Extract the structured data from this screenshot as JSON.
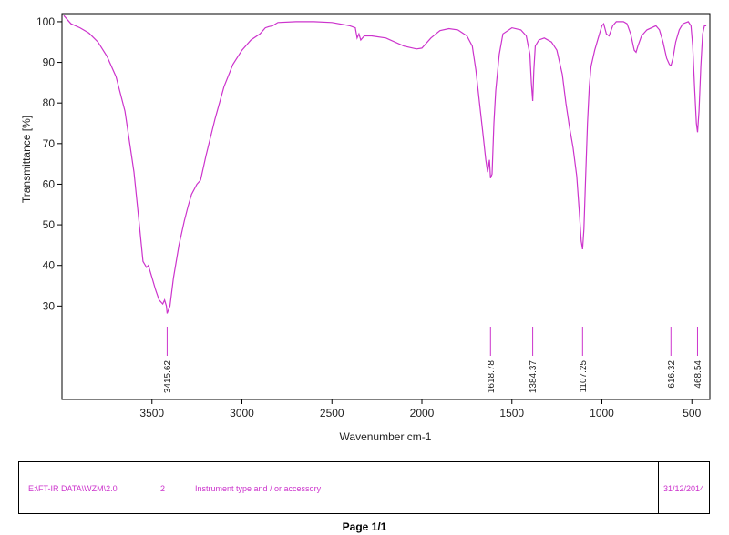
{
  "chart_data": {
    "type": "line",
    "title": "",
    "xlabel": "Wavenumber cm-1",
    "ylabel": "Transmittance [%]",
    "xlim": [
      4000,
      400
    ],
    "ylim": [
      7,
      102
    ],
    "x_ticks": [
      3500,
      3000,
      2500,
      2000,
      1500,
      1000,
      500
    ],
    "y_ticks": [
      30,
      40,
      50,
      60,
      70,
      80,
      90,
      100
    ],
    "color": "#cc33cc",
    "series": [
      {
        "points": [
          [
            3990,
            101.5
          ],
          [
            3950,
            99.5
          ],
          [
            3900,
            98.5
          ],
          [
            3850,
            97.2
          ],
          [
            3800,
            95.0
          ],
          [
            3750,
            91.5
          ],
          [
            3700,
            86.5
          ],
          [
            3650,
            78.0
          ],
          [
            3600,
            63.0
          ],
          [
            3570,
            50.0
          ],
          [
            3550,
            41.0
          ],
          [
            3530,
            39.5
          ],
          [
            3520,
            40.0
          ],
          [
            3500,
            37.0
          ],
          [
            3480,
            34.0
          ],
          [
            3460,
            31.5
          ],
          [
            3440,
            30.5
          ],
          [
            3430,
            31.5
          ],
          [
            3420,
            30.0
          ],
          [
            3415.62,
            28.2
          ],
          [
            3400,
            30.0
          ],
          [
            3380,
            37.0
          ],
          [
            3350,
            45.0
          ],
          [
            3320,
            51.0
          ],
          [
            3300,
            54.5
          ],
          [
            3280,
            57.5
          ],
          [
            3250,
            60.0
          ],
          [
            3230,
            61.0
          ],
          [
            3200,
            67.0
          ],
          [
            3150,
            76.0
          ],
          [
            3100,
            84.0
          ],
          [
            3050,
            89.5
          ],
          [
            3000,
            93.0
          ],
          [
            2950,
            95.5
          ],
          [
            2900,
            97.0
          ],
          [
            2870,
            98.5
          ],
          [
            2850,
            98.8
          ],
          [
            2830,
            99.0
          ],
          [
            2800,
            99.8
          ],
          [
            2700,
            100.0
          ],
          [
            2600,
            100.0
          ],
          [
            2500,
            99.8
          ],
          [
            2400,
            99.0
          ],
          [
            2370,
            98.5
          ],
          [
            2360,
            96.0
          ],
          [
            2350,
            97.0
          ],
          [
            2340,
            95.5
          ],
          [
            2320,
            96.5
          ],
          [
            2280,
            96.5
          ],
          [
            2200,
            96.0
          ],
          [
            2100,
            94.0
          ],
          [
            2030,
            93.3
          ],
          [
            2000,
            93.5
          ],
          [
            1950,
            96.0
          ],
          [
            1900,
            97.8
          ],
          [
            1850,
            98.3
          ],
          [
            1800,
            98.0
          ],
          [
            1750,
            96.5
          ],
          [
            1720,
            94.0
          ],
          [
            1700,
            88.0
          ],
          [
            1680,
            80.0
          ],
          [
            1660,
            72.0
          ],
          [
            1645,
            66.0
          ],
          [
            1635,
            63.0
          ],
          [
            1625,
            66.0
          ],
          [
            1618.78,
            61.5
          ],
          [
            1610,
            62.5
          ],
          [
            1600,
            75.0
          ],
          [
            1590,
            83.0
          ],
          [
            1570,
            92.0
          ],
          [
            1550,
            97.0
          ],
          [
            1500,
            98.5
          ],
          [
            1450,
            98.0
          ],
          [
            1420,
            96.5
          ],
          [
            1400,
            92.0
          ],
          [
            1392,
            85.0
          ],
          [
            1384.37,
            80.5
          ],
          [
            1378,
            88.0
          ],
          [
            1370,
            94.0
          ],
          [
            1350,
            95.5
          ],
          [
            1320,
            96.0
          ],
          [
            1280,
            95.0
          ],
          [
            1250,
            93.0
          ],
          [
            1220,
            87.0
          ],
          [
            1200,
            80.0
          ],
          [
            1180,
            74.0
          ],
          [
            1160,
            69.0
          ],
          [
            1140,
            62.0
          ],
          [
            1125,
            53.0
          ],
          [
            1115,
            46.0
          ],
          [
            1107.25,
            44.0
          ],
          [
            1100,
            49.0
          ],
          [
            1090,
            62.0
          ],
          [
            1080,
            75.0
          ],
          [
            1070,
            84.0
          ],
          [
            1060,
            89.0
          ],
          [
            1040,
            93.0
          ],
          [
            1020,
            96.0
          ],
          [
            1000,
            99.0
          ],
          [
            990,
            99.5
          ],
          [
            975,
            97.0
          ],
          [
            960,
            96.5
          ],
          [
            940,
            99.0
          ],
          [
            920,
            100.0
          ],
          [
            880,
            100.0
          ],
          [
            860,
            99.5
          ],
          [
            840,
            97.0
          ],
          [
            820,
            93.0
          ],
          [
            810,
            92.5
          ],
          [
            800,
            94.0
          ],
          [
            780,
            96.5
          ],
          [
            750,
            98.0
          ],
          [
            700,
            99.0
          ],
          [
            680,
            98.0
          ],
          [
            660,
            95.0
          ],
          [
            640,
            91.0
          ],
          [
            625,
            89.5
          ],
          [
            616.32,
            89.2
          ],
          [
            605,
            91.0
          ],
          [
            590,
            95.0
          ],
          [
            570,
            98.0
          ],
          [
            550,
            99.5
          ],
          [
            520,
            100.0
          ],
          [
            505,
            99.0
          ],
          [
            495,
            94.0
          ],
          [
            485,
            84.0
          ],
          [
            475,
            75.0
          ],
          [
            468.54,
            72.8
          ],
          [
            460,
            78.0
          ],
          [
            450,
            89.0
          ],
          [
            440,
            97.0
          ],
          [
            430,
            99.0
          ],
          [
            420,
            99.0
          ]
        ]
      }
    ],
    "peaks": [
      "3415.62",
      "1618.78",
      "1384.37",
      "1107.25",
      "616.32",
      "468.54"
    ],
    "grid": false
  },
  "footer": {
    "path": "E:\\FT-IR DATA\\WZM\\2.0",
    "number": "2",
    "instrument": "Instrument type and / or accessory",
    "date": "31/12/2014",
    "color": "#cc33cc"
  },
  "page_label": "Page 1/1"
}
